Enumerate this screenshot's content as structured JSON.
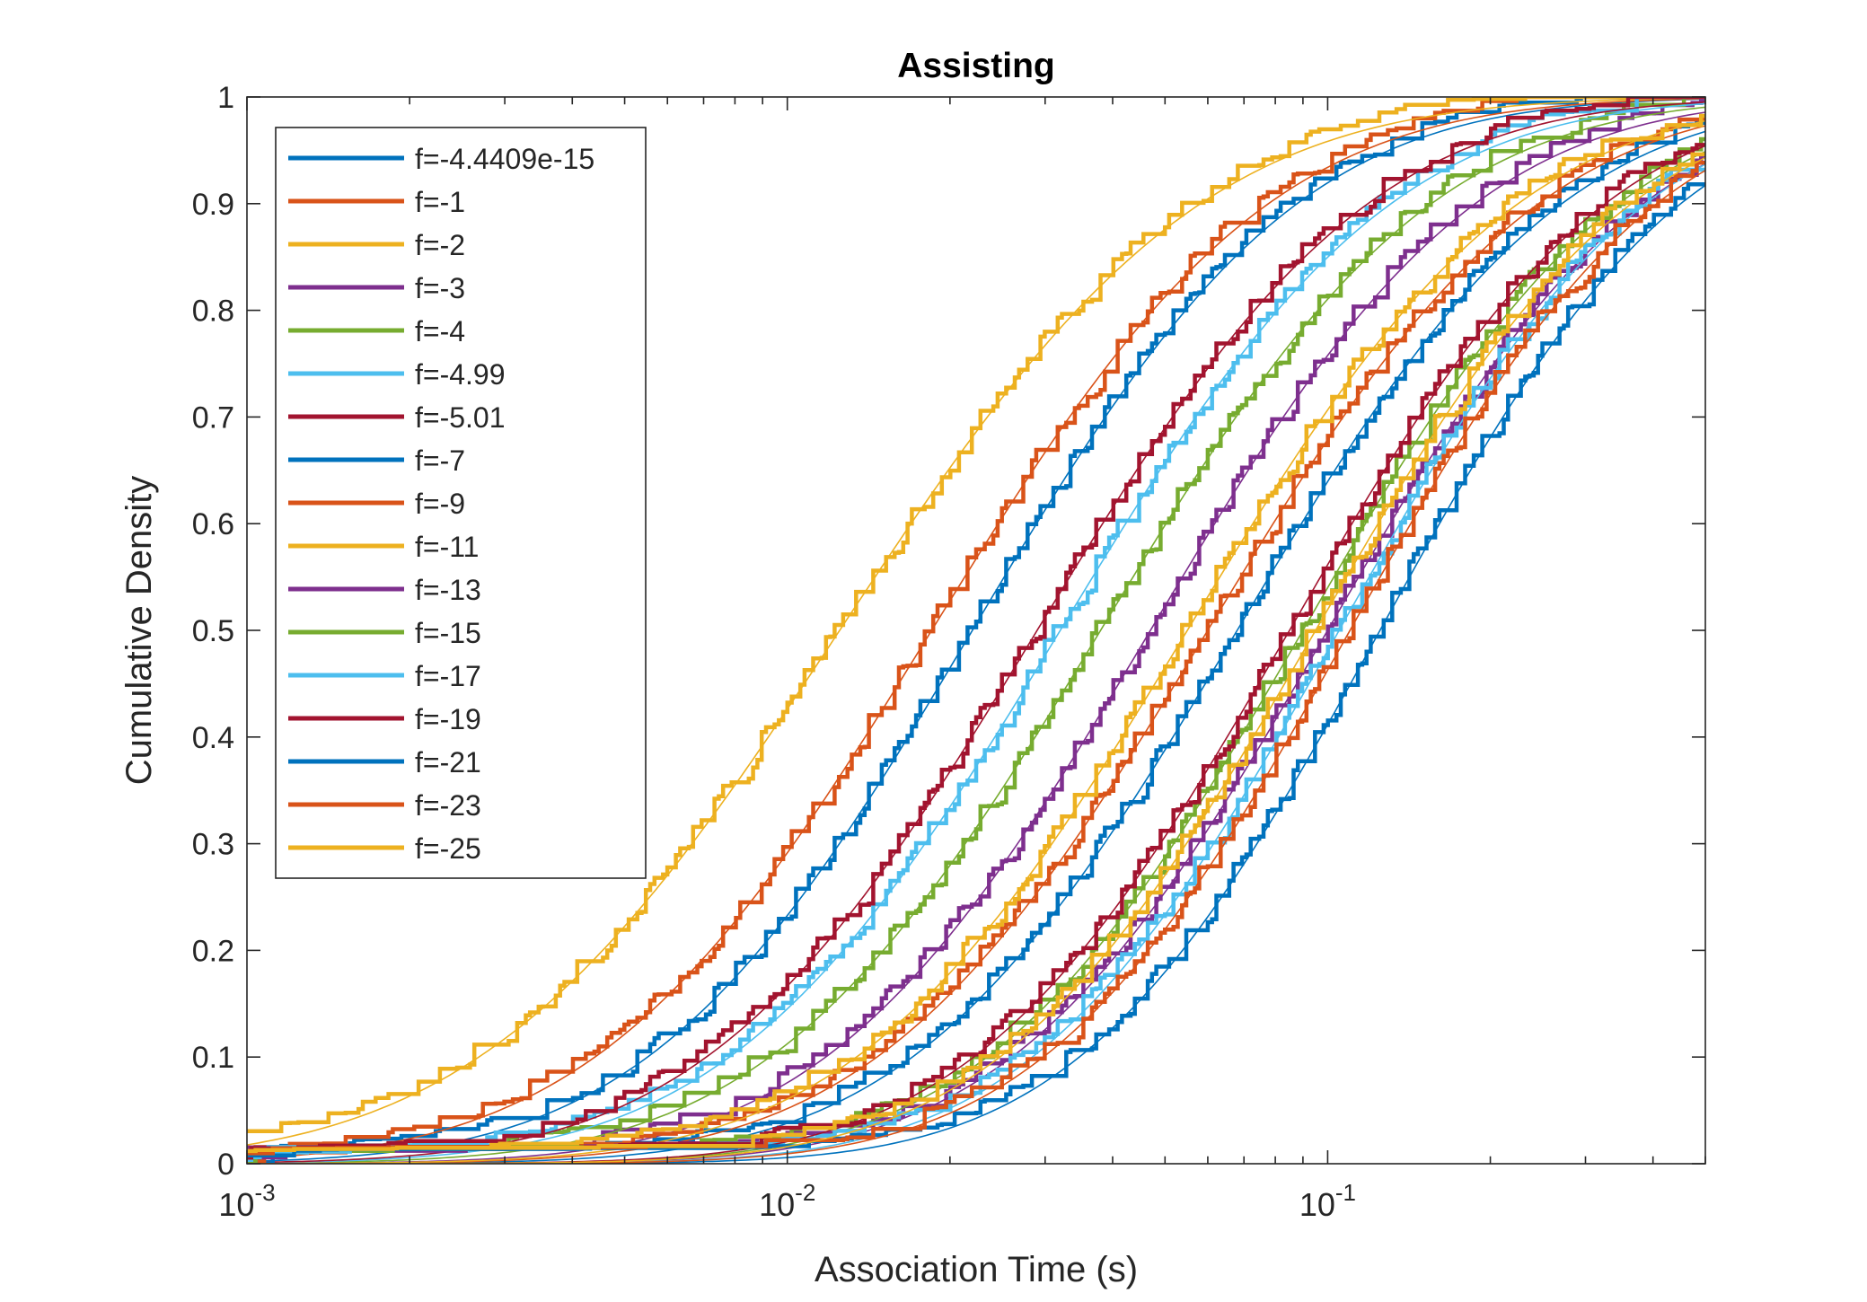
{
  "chart_data": {
    "type": "line",
    "title": "Assisting",
    "xlabel": "Association Time (s)",
    "ylabel": "Cumulative Density",
    "xscale": "log",
    "xlim": [
      0.001,
      0.5
    ],
    "ylim": [
      0,
      1
    ],
    "x_ticks": [
      {
        "value": 0.001,
        "base": "10",
        "exp": "-3"
      },
      {
        "value": 0.01,
        "base": "10",
        "exp": "-2"
      },
      {
        "value": 0.1,
        "base": "10",
        "exp": "-1"
      }
    ],
    "y_ticks": [
      "0",
      "0.1",
      "0.2",
      "0.3",
      "0.4",
      "0.5",
      "0.6",
      "0.7",
      "0.8",
      "0.9",
      "1"
    ],
    "grid": false,
    "legend_position": "top-left",
    "series": [
      {
        "name": "f=-4.4409e-15",
        "color": "#0072BD",
        "median": 0.022,
        "sigma": 1.08
      },
      {
        "name": "f=-1",
        "color": "#D95319",
        "median": 0.0185,
        "sigma": 1.12
      },
      {
        "name": "f=-2",
        "color": "#EDB120",
        "median": 0.0125,
        "sigma": 1.2
      },
      {
        "name": "f=-3",
        "color": "#7E2F8E",
        "median": 0.047,
        "sigma": 1.08
      },
      {
        "name": "f=-4",
        "color": "#77AC30",
        "median": 0.038,
        "sigma": 1.1
      },
      {
        "name": "f=-4.99",
        "color": "#4DBEEE",
        "median": 0.032,
        "sigma": 1.1
      },
      {
        "name": "f=-5.01",
        "color": "#A2142F",
        "median": 0.029,
        "sigma": 1.1
      },
      {
        "name": "f=-7",
        "color": "#0072BD",
        "median": 0.068,
        "sigma": 1.08
      },
      {
        "name": "f=-9",
        "color": "#D95319",
        "median": 0.06,
        "sigma": 1.1
      },
      {
        "name": "f=-11",
        "color": "#EDB120",
        "median": 0.055,
        "sigma": 1.1
      },
      {
        "name": "f=-13",
        "color": "#7E2F8E",
        "median": 0.1,
        "sigma": 1.05
      },
      {
        "name": "f=-15",
        "color": "#77AC30",
        "median": 0.09,
        "sigma": 1.05
      },
      {
        "name": "f=-17",
        "color": "#4DBEEE",
        "median": 0.105,
        "sigma": 1.02
      },
      {
        "name": "f=-19",
        "color": "#A2142F",
        "median": 0.085,
        "sigma": 1.05
      },
      {
        "name": "f=-21",
        "color": "#0072BD",
        "median": 0.125,
        "sigma": 1.0
      },
      {
        "name": "f=-23",
        "color": "#D95319",
        "median": 0.11,
        "sigma": 1.02
      },
      {
        "name": "f=-25",
        "color": "#EDB120",
        "median": 0.095,
        "sigma": 1.05
      }
    ]
  }
}
